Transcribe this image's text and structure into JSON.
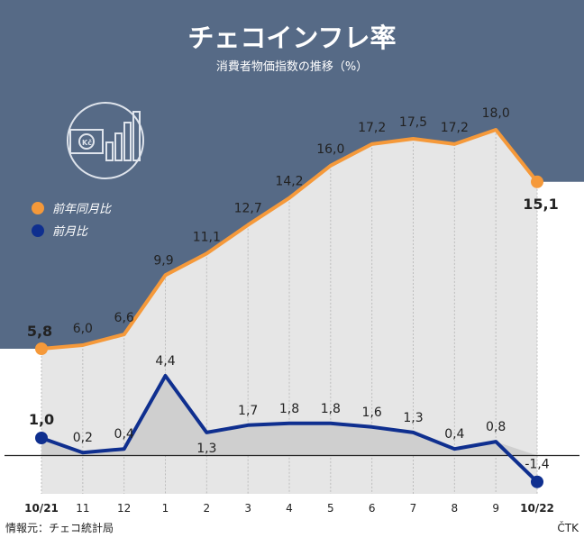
{
  "header": {
    "title": "チェコインフレ率",
    "subtitle": "消費者物価指数の推移（%）"
  },
  "footer": {
    "source": "情報元：チェコ統計局",
    "credit": "ČTK"
  },
  "colors": {
    "background_panel": "#566a86",
    "yoy_series": "#f5993a",
    "mom_series": "#0f2f8f",
    "area_fill": "#e6e6e6",
    "lower_area_fill": "#cfcfcf"
  },
  "decoration": {
    "icon": "koruna-chart-icon"
  },
  "chart_data": {
    "type": "line",
    "categories": [
      "10/21",
      "11",
      "12",
      "1",
      "2",
      "3",
      "4",
      "5",
      "6",
      "7",
      "8",
      "9",
      "10/22"
    ],
    "series": [
      {
        "name": "前年同月比",
        "values": [
          5.8,
          6.0,
          6.6,
          9.9,
          11.1,
          12.7,
          14.2,
          16.0,
          17.2,
          17.5,
          17.2,
          18.0,
          15.1
        ],
        "labels": [
          "5,8",
          "6,0",
          "6,6",
          "9,9",
          "11,1",
          "12,7",
          "14,2",
          "16,0",
          "17,2",
          "17,5",
          "17,2",
          "18,0",
          "15,1"
        ]
      },
      {
        "name": "前月比",
        "values": [
          1.0,
          0.2,
          0.4,
          4.4,
          1.3,
          1.7,
          1.8,
          1.8,
          1.6,
          1.3,
          0.4,
          0.8,
          -1.4
        ],
        "labels": [
          "1,0",
          "0,2",
          "0,4",
          "4,4",
          "1,3",
          "1,7",
          "1,8",
          "1,8",
          "1,6",
          "1,3",
          "0,4",
          "0,8",
          "-1,4"
        ]
      }
    ],
    "legend_position": "left"
  }
}
